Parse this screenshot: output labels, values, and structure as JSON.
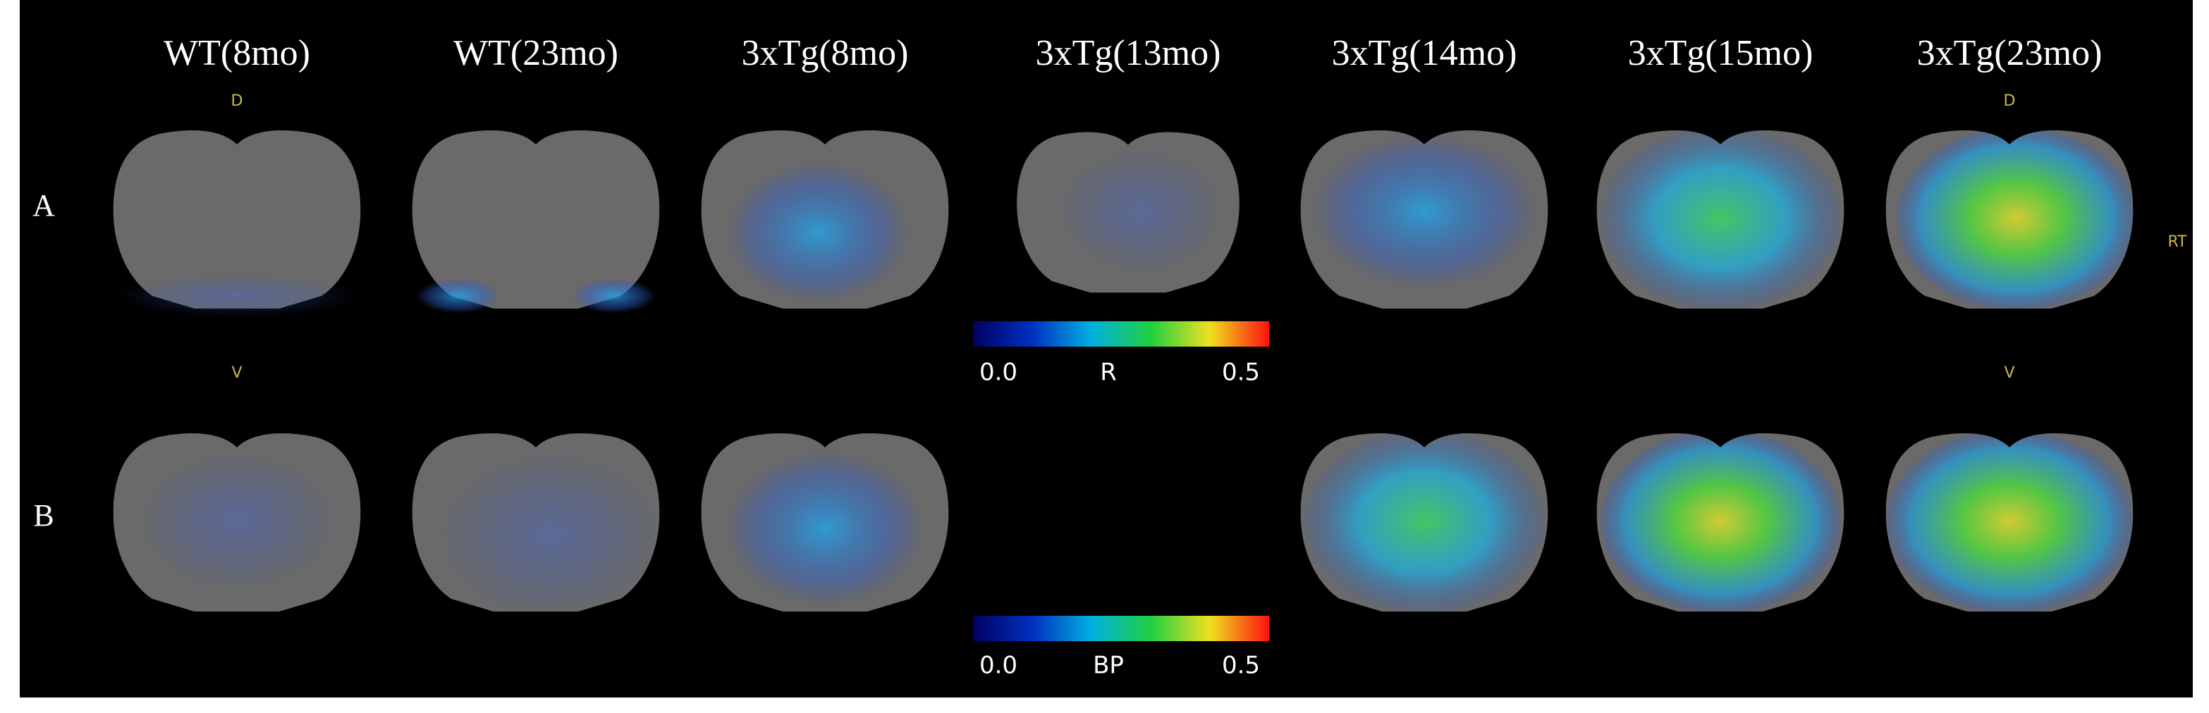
{
  "columns": [
    "WT(8mo)",
    "WT(23mo)",
    "3xTg(8mo)",
    "3xTg(13mo)",
    "3xTg(14mo)",
    "3xTg(15mo)",
    "3xTg(23mo)"
  ],
  "rows": [
    "A",
    "B"
  ],
  "orientation_labels": [
    "D",
    "V",
    "D",
    "V",
    "RT"
  ],
  "colorbars": [
    {
      "min": "0.0",
      "label": "R",
      "max": "0.5"
    },
    {
      "min": "0.0",
      "label": "BP",
      "max": "0.5"
    }
  ]
}
